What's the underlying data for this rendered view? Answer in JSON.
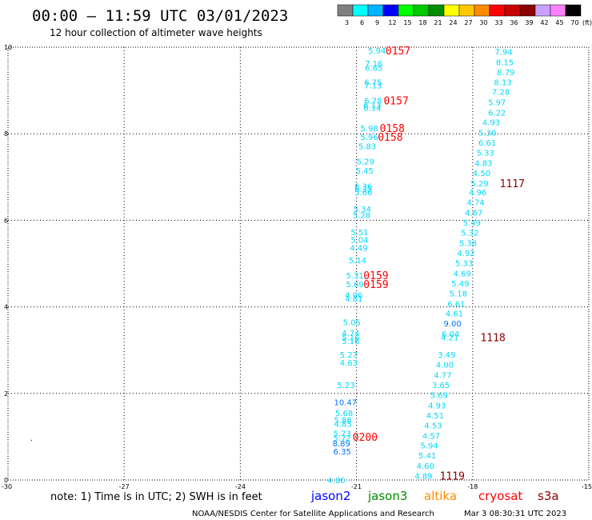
{
  "header": {
    "title": "00:00 – 11:59 UTC 03/01/2023",
    "subtitle": "12 hour collection of altimeter wave heights"
  },
  "colorbar": {
    "unit": "(ft)",
    "entries": [
      {
        "label": "3",
        "color": "#808080"
      },
      {
        "label": "6",
        "color": "#00ffff"
      },
      {
        "label": "9",
        "color": "#00b4ff"
      },
      {
        "label": "12",
        "color": "#0000ff"
      },
      {
        "label": "15",
        "color": "#00ff00"
      },
      {
        "label": "18",
        "color": "#00c800"
      },
      {
        "label": "21",
        "color": "#008c00"
      },
      {
        "label": "24",
        "color": "#ffff00"
      },
      {
        "label": "27",
        "color": "#ffc800"
      },
      {
        "label": "30",
        "color": "#ff8c00"
      },
      {
        "label": "33",
        "color": "#ff0000"
      },
      {
        "label": "36",
        "color": "#c80000"
      },
      {
        "label": "39",
        "color": "#8c0000"
      },
      {
        "label": "42",
        "color": "#c8a0ff"
      },
      {
        "label": "45",
        "color": "#ff80ff"
      },
      {
        "label": "70",
        "color": "#000000"
      }
    ]
  },
  "map": {
    "x_ticks": [
      "-30",
      "-27",
      "-24",
      "-21",
      "-18",
      "-15"
    ],
    "y_ticks": [
      "0",
      "2",
      "4",
      "6",
      "8",
      "10"
    ],
    "xlim": [
      -30,
      -15
    ],
    "ylim": [
      0,
      10
    ],
    "colors": {
      "cyan": "#00d8ff",
      "blue": "#0070ff",
      "red": "#ff0000",
      "darkred": "#8c0000"
    }
  },
  "tracks": {
    "west": {
      "values": [
        {
          "t": "5.94",
          "lon": -20.7,
          "lat": 9.93,
          "c": "cyan"
        },
        {
          "t": "7.16",
          "lon": -20.78,
          "lat": 9.63,
          "c": "cyan"
        },
        {
          "t": "6.65",
          "lon": -20.78,
          "lat": 9.53,
          "c": "cyan"
        },
        {
          "t": "6.75",
          "lon": -20.8,
          "lat": 9.2,
          "c": "cyan"
        },
        {
          "t": "7.13",
          "lon": -20.8,
          "lat": 9.12,
          "c": "cyan"
        },
        {
          "t": "6.78",
          "lon": -20.8,
          "lat": 8.77,
          "c": "cyan"
        },
        {
          "t": "6.13",
          "lon": -20.82,
          "lat": 8.67,
          "c": "cyan"
        },
        {
          "t": "6.14",
          "lon": -20.82,
          "lat": 8.6,
          "c": "cyan"
        },
        {
          "t": "5.98",
          "lon": -20.9,
          "lat": 8.13,
          "c": "cyan"
        },
        {
          "t": "5.96",
          "lon": -20.9,
          "lat": 7.93,
          "c": "cyan"
        },
        {
          "t": "5.83",
          "lon": -20.95,
          "lat": 7.72,
          "c": "cyan"
        },
        {
          "t": "5.29",
          "lon": -21.0,
          "lat": 7.37,
          "c": "cyan"
        },
        {
          "t": "5.45",
          "lon": -21.02,
          "lat": 7.15,
          "c": "cyan"
        },
        {
          "t": "6.36",
          "lon": -21.05,
          "lat": 6.79,
          "c": "cyan"
        },
        {
          "t": "6.35",
          "lon": -21.05,
          "lat": 6.73,
          "c": "cyan"
        },
        {
          "t": "5.66",
          "lon": -21.05,
          "lat": 6.65,
          "c": "cyan"
        },
        {
          "t": "5.34",
          "lon": -21.08,
          "lat": 6.27,
          "c": "cyan"
        },
        {
          "t": "5.28",
          "lon": -21.1,
          "lat": 6.13,
          "c": "cyan"
        },
        {
          "t": "5.51",
          "lon": -21.15,
          "lat": 5.73,
          "c": "cyan"
        },
        {
          "t": "5.04",
          "lon": -21.15,
          "lat": 5.55,
          "c": "cyan"
        },
        {
          "t": "4.49",
          "lon": -21.17,
          "lat": 5.37,
          "c": "cyan"
        },
        {
          "t": "5.14",
          "lon": -21.2,
          "lat": 5.08,
          "c": "cyan"
        },
        {
          "t": "5.31",
          "lon": -21.27,
          "lat": 4.73,
          "c": "cyan"
        },
        {
          "t": "5.69",
          "lon": -21.27,
          "lat": 4.53,
          "c": "cyan"
        },
        {
          "t": "4.96",
          "lon": -21.3,
          "lat": 4.28,
          "c": "cyan"
        },
        {
          "t": "4.81",
          "lon": -21.3,
          "lat": 4.2,
          "c": "cyan"
        },
        {
          "t": "5.05",
          "lon": -21.35,
          "lat": 3.65,
          "c": "cyan"
        },
        {
          "t": "4.74",
          "lon": -21.38,
          "lat": 3.4,
          "c": "cyan"
        },
        {
          "t": "5.16",
          "lon": -21.38,
          "lat": 3.3,
          "c": "cyan"
        },
        {
          "t": "5.16",
          "lon": -21.38,
          "lat": 3.22,
          "c": "cyan"
        },
        {
          "t": "5.27",
          "lon": -21.43,
          "lat": 2.9,
          "c": "cyan"
        },
        {
          "t": "4.63",
          "lon": -21.43,
          "lat": 2.72,
          "c": "cyan"
        },
        {
          "t": "5.23",
          "lon": -21.5,
          "lat": 2.2,
          "c": "cyan"
        },
        {
          "t": "10.47",
          "lon": -21.58,
          "lat": 1.8,
          "c": "blue"
        },
        {
          "t": "5.68",
          "lon": -21.55,
          "lat": 1.55,
          "c": "cyan"
        },
        {
          "t": "5.86",
          "lon": -21.58,
          "lat": 1.4,
          "c": "cyan"
        },
        {
          "t": "4.85",
          "lon": -21.58,
          "lat": 1.3,
          "c": "cyan"
        },
        {
          "t": "5.73",
          "lon": -21.6,
          "lat": 1.08,
          "c": "cyan"
        },
        {
          "t": "5.72",
          "lon": -21.6,
          "lat": 0.98,
          "c": "cyan"
        },
        {
          "t": "8.89",
          "lon": -21.62,
          "lat": 0.85,
          "c": "blue"
        },
        {
          "t": "6.35",
          "lon": -21.6,
          "lat": 0.67,
          "c": "blue"
        },
        {
          "t": "4.80",
          "lon": -21.75,
          "lat": 0.0,
          "c": "cyan"
        }
      ],
      "times": [
        {
          "t": "0157",
          "lon": -20.25,
          "lat": 9.93,
          "c": "red"
        },
        {
          "t": "0157",
          "lon": -20.3,
          "lat": 8.77,
          "c": "red"
        },
        {
          "t": "0158",
          "lon": -20.4,
          "lat": 8.13,
          "c": "red"
        },
        {
          "t": "0158",
          "lon": -20.45,
          "lat": 7.93,
          "c": "red"
        },
        {
          "t": "0159",
          "lon": -20.82,
          "lat": 4.73,
          "c": "red"
        },
        {
          "t": "0159",
          "lon": -20.82,
          "lat": 4.53,
          "c": "red"
        },
        {
          "t": "0200",
          "lon": -21.1,
          "lat": 1.0,
          "c": "red"
        }
      ]
    },
    "east": {
      "values": [
        {
          "t": "7.94",
          "lon": -17.43,
          "lat": 9.9,
          "c": "cyan"
        },
        {
          "t": "8.15",
          "lon": -17.4,
          "lat": 9.66,
          "c": "cyan"
        },
        {
          "t": "8.79",
          "lon": -17.37,
          "lat": 9.43,
          "c": "cyan"
        },
        {
          "t": "8.13",
          "lon": -17.45,
          "lat": 9.2,
          "c": "cyan"
        },
        {
          "t": "7.28",
          "lon": -17.5,
          "lat": 8.97,
          "c": "cyan"
        },
        {
          "t": "5.97",
          "lon": -17.6,
          "lat": 8.73,
          "c": "cyan"
        },
        {
          "t": "6.22",
          "lon": -17.6,
          "lat": 8.49,
          "c": "cyan"
        },
        {
          "t": "4.93",
          "lon": -17.75,
          "lat": 8.27,
          "c": "cyan"
        },
        {
          "t": "5.30",
          "lon": -17.85,
          "lat": 8.03,
          "c": "cyan"
        },
        {
          "t": "6.61",
          "lon": -17.85,
          "lat": 7.8,
          "c": "cyan"
        },
        {
          "t": "5.33",
          "lon": -17.9,
          "lat": 7.57,
          "c": "cyan"
        },
        {
          "t": "4.83",
          "lon": -17.95,
          "lat": 7.33,
          "c": "cyan"
        },
        {
          "t": "4.50",
          "lon": -18.0,
          "lat": 7.1,
          "c": "cyan"
        },
        {
          "t": "5.29",
          "lon": -18.05,
          "lat": 6.86,
          "c": "cyan"
        },
        {
          "t": "4.96",
          "lon": -18.1,
          "lat": 6.65,
          "c": "cyan"
        },
        {
          "t": "4.74",
          "lon": -18.15,
          "lat": 6.42,
          "c": "cyan"
        },
        {
          "t": "4.67",
          "lon": -18.2,
          "lat": 6.18,
          "c": "cyan"
        },
        {
          "t": "5.49",
          "lon": -18.25,
          "lat": 5.95,
          "c": "cyan"
        },
        {
          "t": "5.32",
          "lon": -18.3,
          "lat": 5.72,
          "c": "cyan"
        },
        {
          "t": "5.38",
          "lon": -18.35,
          "lat": 5.48,
          "c": "cyan"
        },
        {
          "t": "4.92",
          "lon": -18.4,
          "lat": 5.25,
          "c": "cyan"
        },
        {
          "t": "5.33",
          "lon": -18.45,
          "lat": 5.02,
          "c": "cyan"
        },
        {
          "t": "4.69",
          "lon": -18.5,
          "lat": 4.78,
          "c": "cyan"
        },
        {
          "t": "5.49",
          "lon": -18.55,
          "lat": 4.55,
          "c": "cyan"
        },
        {
          "t": "5.18",
          "lon": -18.6,
          "lat": 4.32,
          "c": "cyan"
        },
        {
          "t": "6.61",
          "lon": -18.65,
          "lat": 4.08,
          "c": "cyan"
        },
        {
          "t": "4.61",
          "lon": -18.7,
          "lat": 3.85,
          "c": "cyan"
        },
        {
          "t": "9.00",
          "lon": -18.75,
          "lat": 3.62,
          "c": "blue"
        },
        {
          "t": "6.04",
          "lon": -18.8,
          "lat": 3.38,
          "c": "cyan"
        },
        {
          "t": "4.21",
          "lon": -18.82,
          "lat": 3.3,
          "c": "cyan"
        },
        {
          "t": "3.49",
          "lon": -18.9,
          "lat": 2.9,
          "c": "cyan"
        },
        {
          "t": "4.00",
          "lon": -18.95,
          "lat": 2.67,
          "c": "cyan"
        },
        {
          "t": "4.77",
          "lon": -19.0,
          "lat": 2.43,
          "c": "cyan"
        },
        {
          "t": "3.65",
          "lon": -19.05,
          "lat": 2.2,
          "c": "cyan"
        },
        {
          "t": "5.69",
          "lon": -19.1,
          "lat": 1.97,
          "c": "cyan"
        },
        {
          "t": "4.93",
          "lon": -19.15,
          "lat": 1.73,
          "c": "cyan"
        },
        {
          "t": "4.51",
          "lon": -19.2,
          "lat": 1.5,
          "c": "cyan"
        },
        {
          "t": "4.53",
          "lon": -19.25,
          "lat": 1.27,
          "c": "cyan"
        },
        {
          "t": "4.57",
          "lon": -19.3,
          "lat": 1.03,
          "c": "cyan"
        },
        {
          "t": "5.94",
          "lon": -19.35,
          "lat": 0.8,
          "c": "cyan"
        },
        {
          "t": "5.41",
          "lon": -19.4,
          "lat": 0.57,
          "c": "cyan"
        },
        {
          "t": "4.60",
          "lon": -19.45,
          "lat": 0.33,
          "c": "cyan"
        },
        {
          "t": "4.89",
          "lon": -19.5,
          "lat": 0.1,
          "c": "cyan"
        }
      ],
      "times": [
        {
          "t": "1117",
          "lon": -17.3,
          "lat": 6.86,
          "c": "darkred"
        },
        {
          "t": "1118",
          "lon": -17.8,
          "lat": 3.3,
          "c": "darkred"
        },
        {
          "t": "1119",
          "lon": -18.85,
          "lat": 0.1,
          "c": "darkred"
        }
      ]
    }
  },
  "footer": {
    "note": "note: 1) Time is in UTC; 2) SWH is in feet",
    "satellites": [
      {
        "name": "jason2",
        "color": "#0000ff"
      },
      {
        "name": "jason3",
        "color": "#008c00"
      },
      {
        "name": "altika",
        "color": "#ff8c00"
      },
      {
        "name": "cryosat",
        "color": "#ff0000"
      },
      {
        "name": "s3a",
        "color": "#8c0000"
      }
    ],
    "credit": "NOAA/NESDIS Center for Satellite Applications and Research",
    "timestamp": "Mar  3 08:30:31 UTC 2023"
  }
}
